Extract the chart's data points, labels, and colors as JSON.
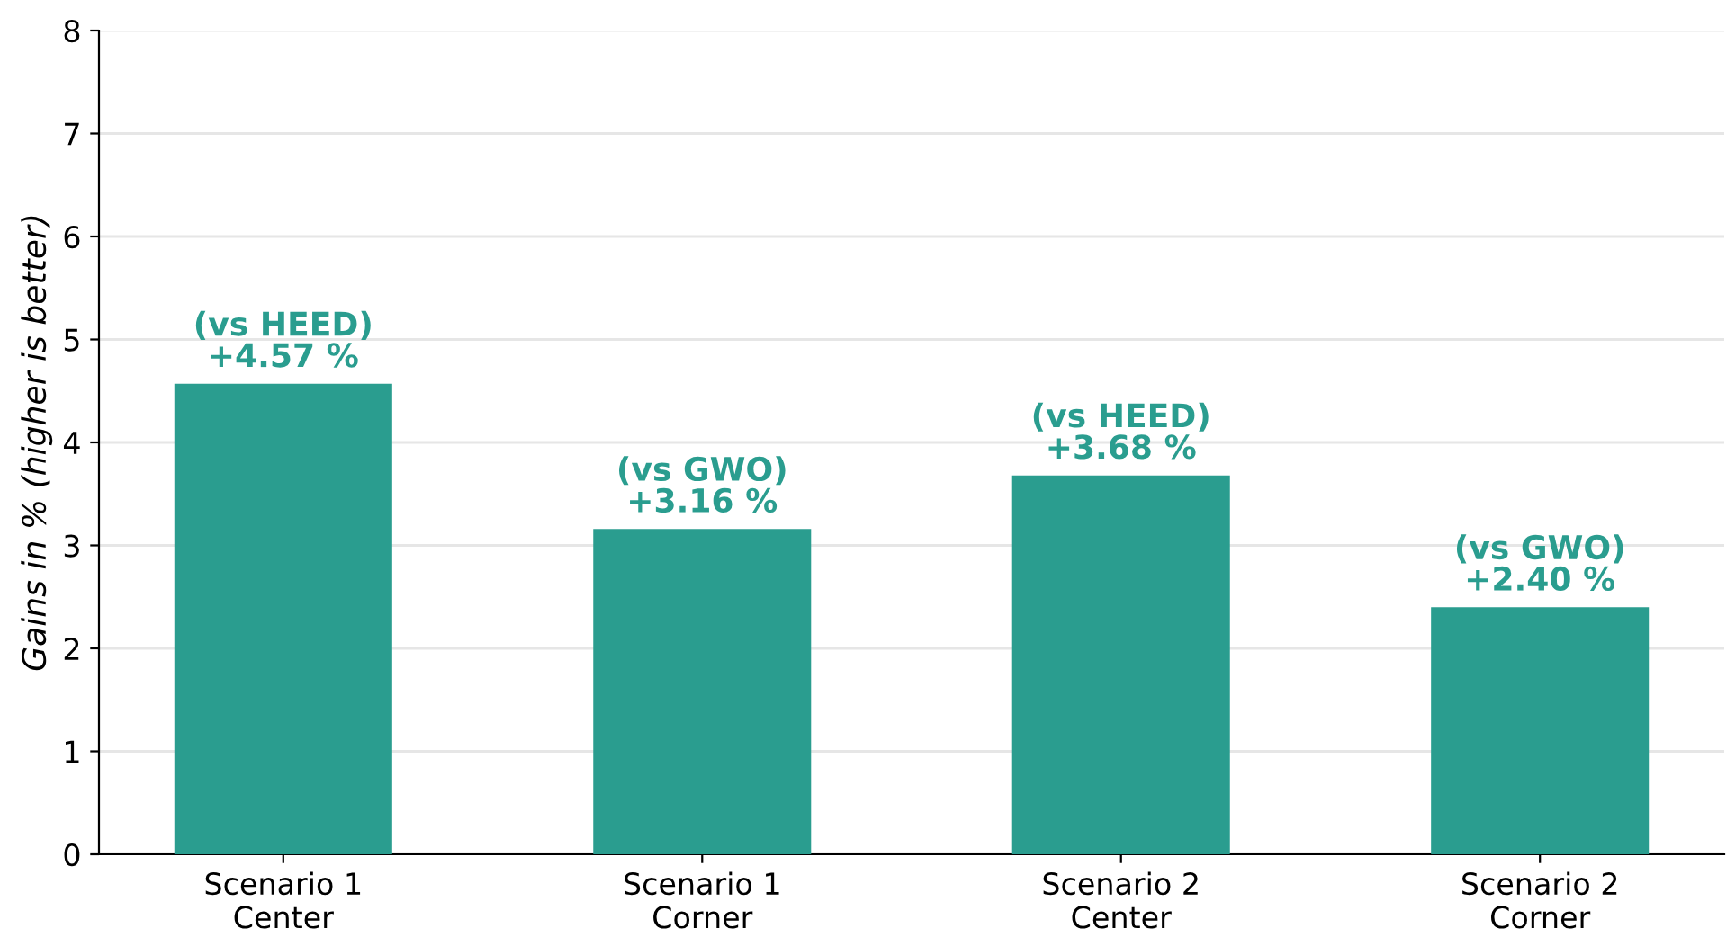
{
  "chart_data": {
    "type": "bar",
    "ylabel": "Gains in % (higher is better)",
    "categories": [
      "Scenario 1\nCenter",
      "Scenario 1\nCorner",
      "Scenario 2\nCenter",
      "Scenario 2\nCorner"
    ],
    "values": [
      4.57,
      3.16,
      3.68,
      2.4
    ],
    "value_labels": [
      "(vs HEED)\n+4.57 %",
      "(vs GWO)\n+3.16 %",
      "(vs HEED)\n+3.68 %",
      "(vs GWO)\n+2.40 %"
    ],
    "color": "#2a9d8f",
    "ylim": [
      0,
      8
    ],
    "yticks": [
      0,
      1,
      2,
      3,
      4,
      5,
      6,
      7,
      8
    ],
    "grid": "y"
  }
}
